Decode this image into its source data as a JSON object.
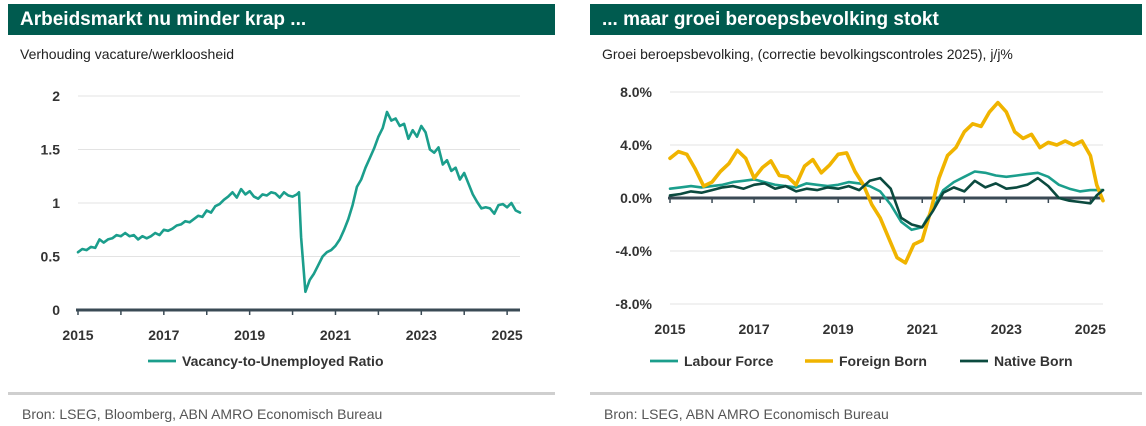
{
  "left_panel": {
    "title": "Arbeidsmarkt nu minder krap ...",
    "subtitle": "Verhouding vacature/werkloosheid",
    "source": "Bron: LSEG, Bloomberg, ABN AMRO  Economisch Bureau"
  },
  "right_panel": {
    "title": "... maar groei beroepsbevolking stokt",
    "subtitle": "Groei beroepsbevolking, (correctie bevolkingscontroles 2025), j/j%",
    "source": "Bron: LSEG, ABN AMRO  Economisch Bureau"
  },
  "colors": {
    "header": "#005b4f",
    "teal": "#1b9e8c",
    "yellow": "#f0b400",
    "dark_green": "#0b4a3f"
  },
  "chart_data": [
    {
      "type": "line",
      "xlim": [
        2015,
        2025.3
      ],
      "ylim": [
        0,
        2
      ],
      "x_ticks": [
        "2015",
        "2017",
        "2019",
        "2021",
        "2023",
        "2025"
      ],
      "y_ticks": [
        "0",
        "0.5",
        "1",
        "1.5",
        "2"
      ],
      "grid": "horizontal",
      "legend_position": "bottom",
      "series": [
        {
          "name": "Vacancy-to-Unemployed Ratio",
          "color": "#1b9e8c",
          "x": [
            2015.0,
            2015.1,
            2015.2,
            2015.3,
            2015.4,
            2015.5,
            2015.6,
            2015.7,
            2015.8,
            2015.9,
            2016.0,
            2016.1,
            2016.2,
            2016.3,
            2016.4,
            2016.5,
            2016.6,
            2016.7,
            2016.8,
            2016.9,
            2017.0,
            2017.1,
            2017.2,
            2017.3,
            2017.4,
            2017.5,
            2017.6,
            2017.7,
            2017.8,
            2017.9,
            2018.0,
            2018.1,
            2018.2,
            2018.3,
            2018.4,
            2018.5,
            2018.6,
            2018.7,
            2018.8,
            2018.9,
            2019.0,
            2019.1,
            2019.2,
            2019.3,
            2019.4,
            2019.5,
            2019.6,
            2019.7,
            2019.8,
            2019.9,
            2020.0,
            2020.1,
            2020.15,
            2020.2,
            2020.3,
            2020.4,
            2020.5,
            2020.6,
            2020.7,
            2020.8,
            2020.9,
            2021.0,
            2021.1,
            2021.2,
            2021.3,
            2021.4,
            2021.5,
            2021.6,
            2021.7,
            2021.8,
            2021.9,
            2022.0,
            2022.1,
            2022.2,
            2022.3,
            2022.4,
            2022.5,
            2022.6,
            2022.7,
            2022.8,
            2022.9,
            2023.0,
            2023.1,
            2023.2,
            2023.3,
            2023.4,
            2023.5,
            2023.6,
            2023.7,
            2023.8,
            2023.9,
            2024.0,
            2024.1,
            2024.2,
            2024.3,
            2024.4,
            2024.5,
            2024.6,
            2024.7,
            2024.8,
            2024.9,
            2025.0,
            2025.1,
            2025.2,
            2025.3
          ],
          "y": [
            0.54,
            0.57,
            0.56,
            0.59,
            0.58,
            0.66,
            0.63,
            0.66,
            0.67,
            0.7,
            0.69,
            0.72,
            0.69,
            0.7,
            0.66,
            0.69,
            0.67,
            0.69,
            0.72,
            0.7,
            0.75,
            0.74,
            0.76,
            0.79,
            0.8,
            0.83,
            0.82,
            0.85,
            0.88,
            0.87,
            0.93,
            0.91,
            0.97,
            0.99,
            1.03,
            1.06,
            1.1,
            1.05,
            1.13,
            1.08,
            1.11,
            1.06,
            1.04,
            1.08,
            1.07,
            1.1,
            1.09,
            1.05,
            1.1,
            1.07,
            1.06,
            1.08,
            1.1,
            0.68,
            0.17,
            0.28,
            0.34,
            0.42,
            0.5,
            0.54,
            0.56,
            0.6,
            0.66,
            0.75,
            0.85,
            0.98,
            1.15,
            1.22,
            1.33,
            1.42,
            1.51,
            1.62,
            1.7,
            1.85,
            1.77,
            1.79,
            1.72,
            1.74,
            1.6,
            1.68,
            1.62,
            1.72,
            1.66,
            1.5,
            1.47,
            1.52,
            1.36,
            1.4,
            1.3,
            1.33,
            1.22,
            1.28,
            1.18,
            1.08,
            1.01,
            0.95,
            0.96,
            0.95,
            0.9,
            0.98,
            0.99,
            0.96,
            1.0,
            0.93,
            0.91
          ]
        }
      ]
    },
    {
      "type": "line",
      "xlim": [
        2015,
        2025.3
      ],
      "ylim": [
        -8,
        8
      ],
      "x_ticks": [
        "2015",
        "2017",
        "2019",
        "2021",
        "2023",
        "2025"
      ],
      "y_ticks": [
        "8.0%",
        "4.0%",
        "0.0%",
        "-4.0%",
        "-8.0%"
      ],
      "grid": "horizontal",
      "legend_position": "bottom",
      "series": [
        {
          "name": "Labour Force",
          "color": "#1b9e8c",
          "x": [
            2015.0,
            2015.25,
            2015.5,
            2015.75,
            2016.0,
            2016.25,
            2016.5,
            2016.75,
            2017.0,
            2017.25,
            2017.5,
            2017.75,
            2018.0,
            2018.25,
            2018.5,
            2018.75,
            2019.0,
            2019.25,
            2019.5,
            2019.75,
            2020.0,
            2020.25,
            2020.5,
            2020.75,
            2021.0,
            2021.25,
            2021.5,
            2021.75,
            2022.0,
            2022.25,
            2022.5,
            2022.75,
            2023.0,
            2023.25,
            2023.5,
            2023.75,
            2024.0,
            2024.25,
            2024.5,
            2024.75,
            2025.0,
            2025.3
          ],
          "y": [
            0.7,
            0.8,
            0.9,
            0.8,
            0.9,
            1.0,
            1.2,
            1.3,
            1.4,
            1.2,
            1.0,
            0.9,
            0.8,
            1.1,
            1.0,
            0.9,
            1.0,
            1.2,
            1.1,
            0.9,
            0.5,
            -0.5,
            -1.8,
            -2.4,
            -2.2,
            -0.8,
            0.6,
            1.2,
            1.6,
            2.0,
            1.9,
            1.7,
            1.6,
            1.7,
            1.8,
            1.9,
            1.6,
            1.0,
            0.7,
            0.5,
            0.6,
            0.6
          ]
        },
        {
          "name": "Foreign Born",
          "color": "#f0b400",
          "x": [
            2015.0,
            2015.2,
            2015.4,
            2015.6,
            2015.8,
            2016.0,
            2016.2,
            2016.4,
            2016.6,
            2016.8,
            2017.0,
            2017.2,
            2017.4,
            2017.6,
            2017.8,
            2018.0,
            2018.2,
            2018.4,
            2018.6,
            2018.8,
            2019.0,
            2019.2,
            2019.4,
            2019.6,
            2019.8,
            2020.0,
            2020.2,
            2020.4,
            2020.6,
            2020.8,
            2021.0,
            2021.2,
            2021.4,
            2021.6,
            2021.8,
            2022.0,
            2022.2,
            2022.4,
            2022.6,
            2022.8,
            2023.0,
            2023.2,
            2023.4,
            2023.6,
            2023.8,
            2024.0,
            2024.2,
            2024.4,
            2024.6,
            2024.8,
            2025.0,
            2025.15,
            2025.3
          ],
          "y": [
            3.0,
            3.5,
            3.3,
            2.2,
            0.9,
            1.2,
            2.0,
            2.6,
            3.6,
            3.0,
            1.5,
            2.3,
            2.8,
            1.7,
            1.6,
            1.0,
            2.4,
            2.9,
            1.9,
            2.5,
            3.3,
            3.4,
            2.0,
            1.0,
            -0.5,
            -1.5,
            -3.0,
            -4.5,
            -4.9,
            -3.5,
            -3.2,
            -1.0,
            1.5,
            3.2,
            3.8,
            5.0,
            5.6,
            5.4,
            6.5,
            7.2,
            6.5,
            5.0,
            4.5,
            4.8,
            3.8,
            4.2,
            4.0,
            4.3,
            4.0,
            4.3,
            3.2,
            1.0,
            -0.2
          ]
        },
        {
          "name": "Native Born",
          "color": "#0b4a3f",
          "x": [
            2015.0,
            2015.25,
            2015.5,
            2015.75,
            2016.0,
            2016.25,
            2016.5,
            2016.75,
            2017.0,
            2017.25,
            2017.5,
            2017.75,
            2018.0,
            2018.25,
            2018.5,
            2018.75,
            2019.0,
            2019.25,
            2019.5,
            2019.75,
            2020.0,
            2020.25,
            2020.5,
            2020.75,
            2021.0,
            2021.25,
            2021.5,
            2021.75,
            2022.0,
            2022.25,
            2022.5,
            2022.75,
            2023.0,
            2023.25,
            2023.5,
            2023.75,
            2024.0,
            2024.25,
            2024.5,
            2024.75,
            2025.0,
            2025.15,
            2025.3
          ],
          "y": [
            0.2,
            0.3,
            0.5,
            0.4,
            0.6,
            0.8,
            0.9,
            0.7,
            1.0,
            1.1,
            0.7,
            0.9,
            0.5,
            0.7,
            0.6,
            0.8,
            0.7,
            0.9,
            0.6,
            1.3,
            1.5,
            0.7,
            -1.5,
            -2.0,
            -2.2,
            -1.0,
            0.4,
            0.8,
            0.5,
            1.3,
            0.8,
            1.1,
            0.7,
            0.8,
            1.0,
            1.5,
            0.9,
            0.0,
            -0.2,
            -0.3,
            -0.4,
            0.2,
            0.6
          ]
        }
      ]
    }
  ]
}
